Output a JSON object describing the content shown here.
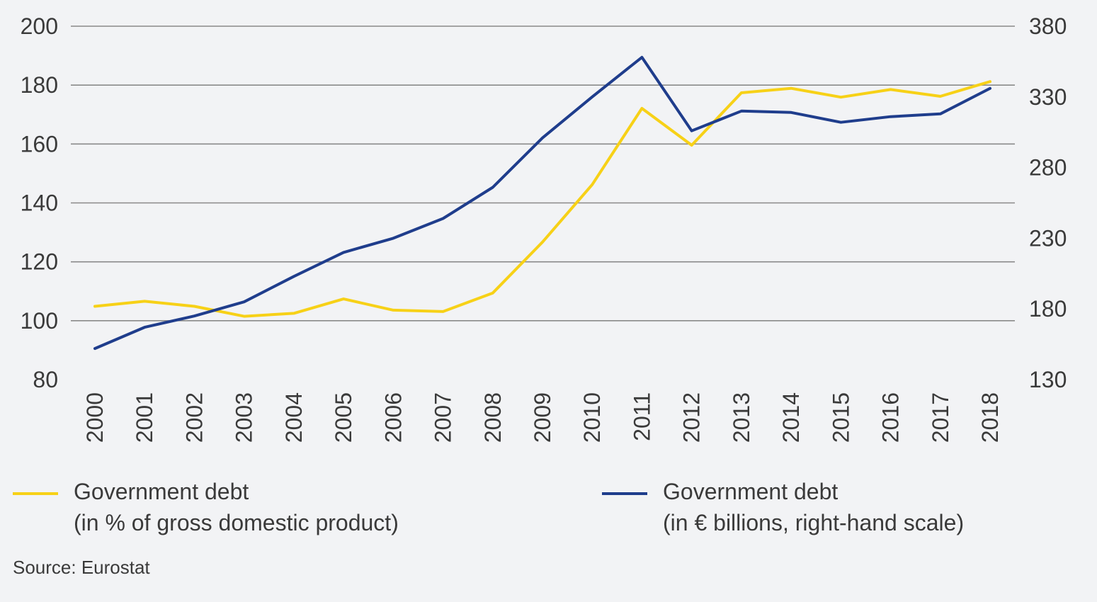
{
  "chart_data": {
    "type": "line",
    "title": "",
    "x": [
      "2000",
      "2001",
      "2002",
      "2003",
      "2004",
      "2005",
      "2006",
      "2007",
      "2008",
      "2009",
      "2010",
      "2011",
      "2012",
      "2013",
      "2014",
      "2015",
      "2016",
      "2017",
      "2018"
    ],
    "y_left": {
      "lim": [
        80,
        200
      ],
      "ticks": [
        80,
        100,
        120,
        140,
        160,
        180,
        200
      ]
    },
    "y_right": {
      "lim": [
        130,
        380
      ],
      "ticks": [
        130,
        180,
        230,
        280,
        330,
        380
      ]
    },
    "grid": true,
    "legend_position": "bottom",
    "series": [
      {
        "name_line1": "Government debt",
        "name_line2": "(in % of gross domestic product)",
        "axis": "left",
        "color": "#f7d117",
        "values": [
          104.9,
          106.6,
          104.9,
          101.5,
          102.5,
          107.4,
          103.6,
          103.1,
          109.4,
          126.7,
          146.2,
          172.1,
          159.6,
          177.4,
          178.9,
          175.9,
          178.5,
          176.2,
          181.2
        ]
      },
      {
        "name_line1": "Government debt",
        "name_line2": "(in € billions, right-hand scale)",
        "axis": "right",
        "color": "#1f3d8c",
        "values": [
          152,
          167,
          175,
          185,
          203,
          220,
          230,
          244,
          266,
          301,
          330,
          358,
          306,
          320,
          319,
          312,
          316,
          318,
          336
        ]
      }
    ]
  },
  "source": "Source: Eurostat"
}
